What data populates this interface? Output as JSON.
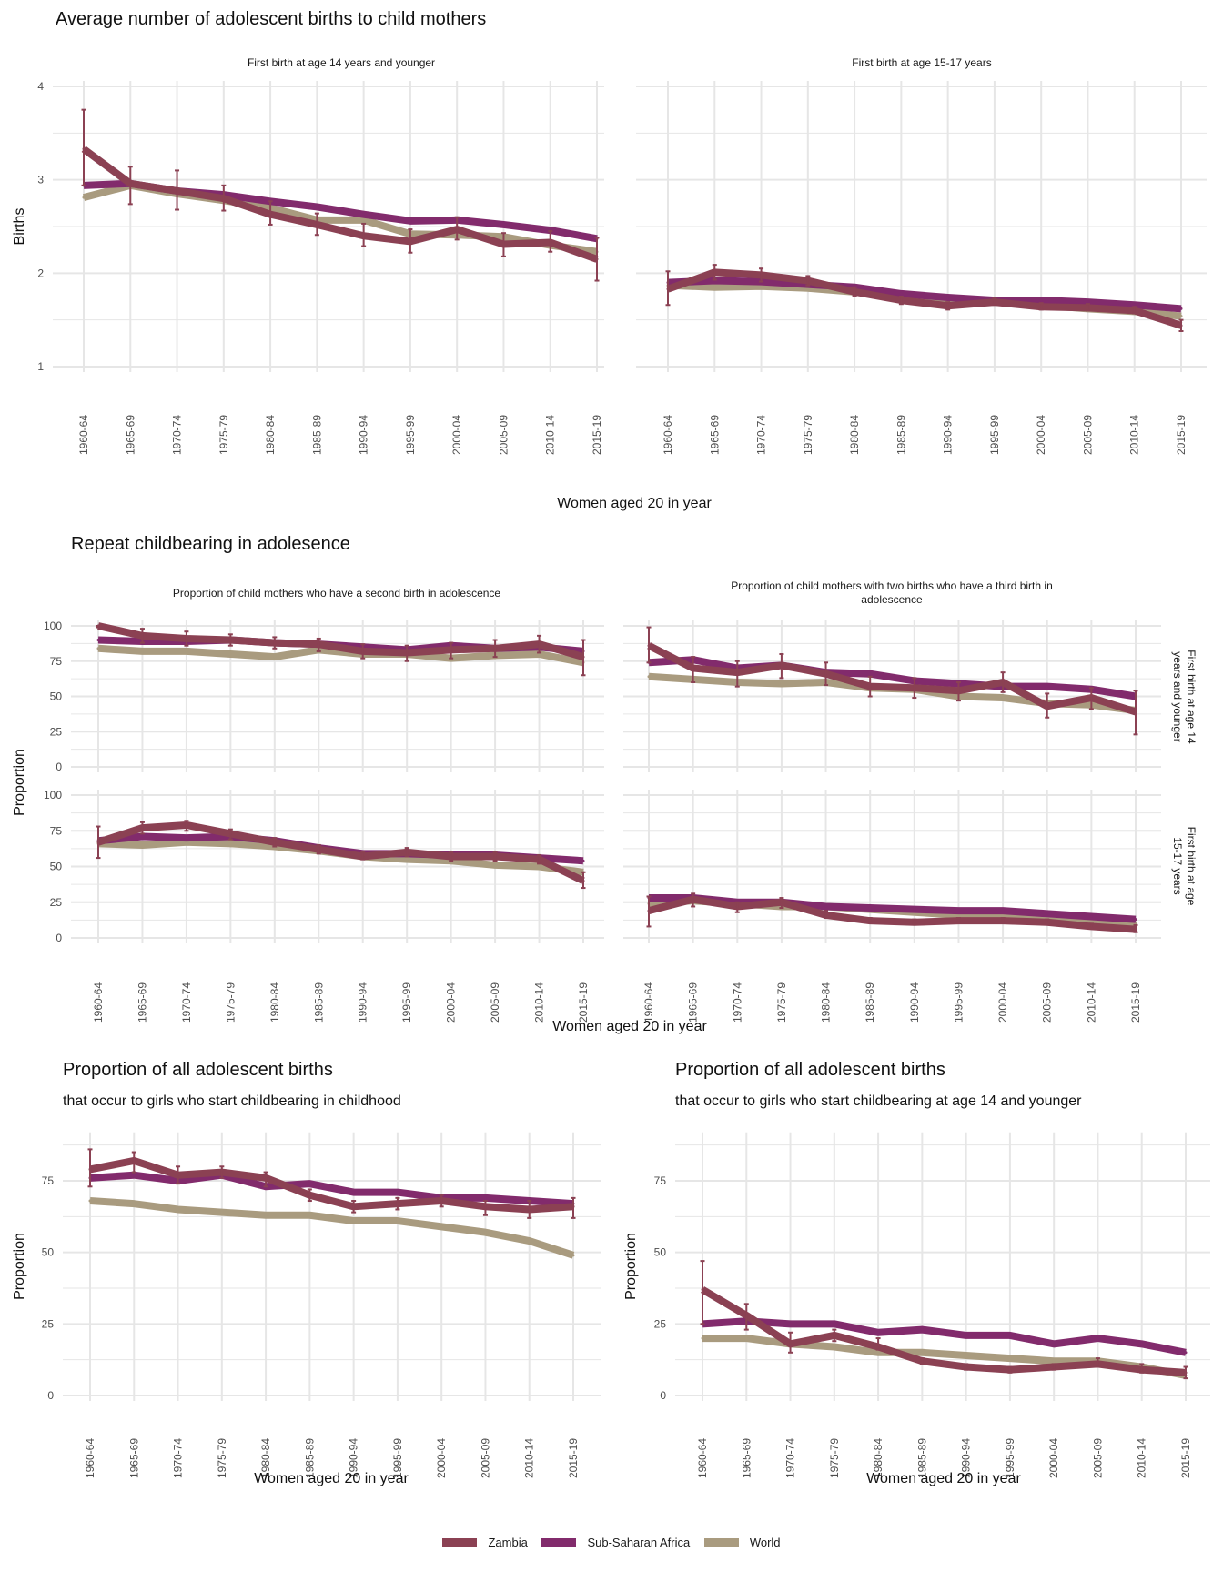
{
  "colors": {
    "Zambia": "#8b4153",
    "Sub-Saharan Africa": "#822b6c",
    "World": "#a99b7f",
    "grid": "#e6e6e6",
    "text": "#333333"
  },
  "section_a": {
    "title": "Average number of adolescent births to child mothers",
    "xlabel": "Women aged 20 in year"
  },
  "section_b": {
    "title": "Repeat childbearing in adolesence",
    "xlabel": "Women aged 20 in year"
  },
  "section_c_left": {
    "title": "Proportion of all adolescent births",
    "subtitle": "that occur to girls who start childbearing in childhood"
  },
  "section_c_right": {
    "title": "Proportion of all adolescent births",
    "subtitle": "that occur to girls who start childbearing at age 14 and younger"
  },
  "legend": [
    {
      "name": "Zambia"
    },
    {
      "name": "Sub-Saharan Africa"
    },
    {
      "name": "World"
    }
  ],
  "chart_data": [
    {
      "id": "a1",
      "type": "line",
      "facet_title": "First birth at age 14 years and younger",
      "ylabel": "Births",
      "xlabel": "Women aged 20 in year",
      "ylim": [
        1,
        4
      ],
      "yticks": [
        1,
        2,
        3,
        4
      ],
      "categories": [
        "1960-64",
        "1965-69",
        "1970-74",
        "1975-79",
        "1980-84",
        "1985-89",
        "1990-94",
        "1995-99",
        "2000-04",
        "2005-09",
        "2010-14",
        "2015-19"
      ],
      "series": [
        {
          "name": "World",
          "values": [
            2.81,
            2.94,
            2.85,
            2.78,
            2.7,
            2.57,
            2.57,
            2.42,
            2.41,
            2.39,
            2.3,
            2.23
          ]
        },
        {
          "name": "Sub-Saharan Africa",
          "values": [
            2.94,
            2.96,
            2.88,
            2.84,
            2.77,
            2.71,
            2.63,
            2.56,
            2.57,
            2.52,
            2.46,
            2.37
          ]
        },
        {
          "name": "Zambia",
          "values": [
            3.33,
            2.96,
            2.88,
            2.8,
            2.63,
            2.52,
            2.4,
            2.34,
            2.47,
            2.31,
            2.33,
            2.15
          ],
          "error_low": [
            2.94,
            2.74,
            2.68,
            2.67,
            2.52,
            2.41,
            2.29,
            2.22,
            2.36,
            2.18,
            2.23,
            1.92
          ],
          "error_high": [
            3.75,
            3.14,
            3.1,
            2.94,
            2.77,
            2.64,
            2.53,
            2.47,
            2.6,
            2.43,
            2.45,
            2.38
          ]
        }
      ]
    },
    {
      "id": "a2",
      "type": "line",
      "facet_title": "First birth at age 15-17 years",
      "ylim": [
        1,
        4
      ],
      "yticks": [
        1,
        2,
        3,
        4
      ],
      "categories": [
        "1960-64",
        "1965-69",
        "1970-74",
        "1975-79",
        "1980-84",
        "1985-89",
        "1990-94",
        "1995-99",
        "2000-04",
        "2005-09",
        "2010-14",
        "2015-19"
      ],
      "series": [
        {
          "name": "World",
          "values": [
            1.87,
            1.85,
            1.86,
            1.84,
            1.8,
            1.76,
            1.71,
            1.7,
            1.66,
            1.62,
            1.59,
            1.54
          ]
        },
        {
          "name": "Sub-Saharan Africa",
          "values": [
            1.9,
            1.92,
            1.91,
            1.88,
            1.85,
            1.78,
            1.74,
            1.71,
            1.71,
            1.69,
            1.66,
            1.62
          ]
        },
        {
          "name": "Zambia",
          "values": [
            1.83,
            2.01,
            1.98,
            1.92,
            1.8,
            1.71,
            1.65,
            1.69,
            1.64,
            1.63,
            1.6,
            1.44
          ],
          "error_low": [
            1.66,
            1.93,
            1.91,
            1.87,
            1.76,
            1.67,
            1.61,
            1.66,
            1.61,
            1.6,
            1.57,
            1.38
          ],
          "error_high": [
            2.02,
            2.09,
            2.05,
            1.97,
            1.85,
            1.75,
            1.69,
            1.73,
            1.68,
            1.67,
            1.64,
            1.5
          ]
        }
      ]
    },
    {
      "id": "b1",
      "type": "line",
      "facet_title": "Proportion of child mothers who have a second birth in adolescence",
      "row_label": "First birth at age 14 years and younger",
      "ylabel": "Proportion",
      "ylim": [
        0,
        100
      ],
      "yticks": [
        0,
        25,
        50,
        75,
        100
      ],
      "categories": [
        "1960-64",
        "1965-69",
        "1970-74",
        "1975-79",
        "1980-84",
        "1985-89",
        "1990-94",
        "1995-99",
        "2000-04",
        "2005-09",
        "2010-14",
        "2015-19"
      ],
      "series": [
        {
          "name": "World",
          "values": [
            84,
            82,
            82,
            80,
            78,
            83,
            80,
            80,
            77,
            79,
            80,
            74
          ]
        },
        {
          "name": "Sub-Saharan Africa",
          "values": [
            90,
            89,
            89,
            90,
            88,
            87,
            85,
            83,
            86,
            84,
            85,
            82
          ]
        },
        {
          "name": "Zambia",
          "values": [
            100,
            93,
            91,
            90,
            88,
            87,
            82,
            81,
            83,
            84,
            87,
            78
          ],
          "error_low": [
            99,
            88,
            86,
            86,
            84,
            82,
            77,
            75,
            77,
            78,
            81,
            65
          ],
          "error_high": [
            100,
            98,
            96,
            94,
            92,
            91,
            87,
            86,
            88,
            90,
            93,
            90
          ]
        }
      ]
    },
    {
      "id": "b2",
      "type": "line",
      "facet_title": "Proportion of child mothers with two births who have a third birth in adolescence",
      "row_label": "First birth at age 14 years and younger",
      "ylim": [
        0,
        100
      ],
      "yticks": [
        0,
        25,
        50,
        75,
        100
      ],
      "categories": [
        "1960-64",
        "1965-69",
        "1970-74",
        "1975-79",
        "1980-84",
        "1985-89",
        "1990-94",
        "1995-99",
        "2000-04",
        "2005-09",
        "2010-14",
        "2015-19"
      ],
      "series": [
        {
          "name": "World",
          "values": [
            64,
            62,
            60,
            59,
            60,
            56,
            55,
            50,
            49,
            45,
            44,
            40
          ]
        },
        {
          "name": "Sub-Saharan Africa",
          "values": [
            74,
            76,
            70,
            72,
            67,
            66,
            61,
            59,
            57,
            57,
            55,
            50
          ]
        },
        {
          "name": "Zambia",
          "values": [
            86,
            70,
            67,
            72,
            66,
            57,
            56,
            54,
            60,
            43,
            49,
            39
          ],
          "error_low": [
            74,
            60,
            57,
            63,
            58,
            50,
            49,
            47,
            53,
            35,
            41,
            23
          ],
          "error_high": [
            99,
            78,
            75,
            80,
            74,
            64,
            63,
            60,
            67,
            52,
            56,
            54
          ]
        }
      ]
    },
    {
      "id": "b3",
      "type": "line",
      "row_label": "First birth at age 15-17 years",
      "ylabel": "Proportion",
      "ylim": [
        0,
        100
      ],
      "yticks": [
        0,
        25,
        50,
        75,
        100
      ],
      "categories": [
        "1960-64",
        "1965-69",
        "1970-74",
        "1975-79",
        "1980-84",
        "1985-89",
        "1990-94",
        "1995-99",
        "2000-04",
        "2005-09",
        "2010-14",
        "2015-19"
      ],
      "series": [
        {
          "name": "World",
          "values": [
            66,
            65,
            67,
            66,
            64,
            61,
            57,
            55,
            54,
            51,
            50,
            46
          ]
        },
        {
          "name": "Sub-Saharan Africa",
          "values": [
            68,
            71,
            70,
            71,
            68,
            63,
            59,
            59,
            58,
            58,
            56,
            54
          ]
        },
        {
          "name": "Zambia",
          "values": [
            67,
            77,
            79,
            73,
            67,
            62,
            57,
            60,
            57,
            57,
            55,
            40
          ],
          "error_low": [
            56,
            73,
            75,
            69,
            64,
            59,
            55,
            57,
            54,
            54,
            52,
            35
          ],
          "error_high": [
            78,
            81,
            82,
            76,
            70,
            65,
            60,
            63,
            60,
            60,
            58,
            46
          ]
        }
      ]
    },
    {
      "id": "b4",
      "type": "line",
      "row_label": "First birth at age 15-17 years",
      "ylim": [
        0,
        100
      ],
      "yticks": [
        0,
        25,
        50,
        75,
        100
      ],
      "categories": [
        "1960-64",
        "1965-69",
        "1970-74",
        "1975-79",
        "1980-84",
        "1985-89",
        "1990-94",
        "1995-99",
        "2000-04",
        "2005-09",
        "2010-14",
        "2015-19"
      ],
      "series": [
        {
          "name": "World",
          "values": [
            24,
            26,
            24,
            22,
            22,
            20,
            18,
            16,
            15,
            13,
            12,
            10
          ]
        },
        {
          "name": "Sub-Saharan Africa",
          "values": [
            28,
            28,
            25,
            25,
            22,
            21,
            20,
            19,
            19,
            17,
            15,
            13
          ]
        },
        {
          "name": "Zambia",
          "values": [
            19,
            27,
            22,
            25,
            16,
            12,
            11,
            12,
            12,
            11,
            8,
            6
          ],
          "error_low": [
            8,
            22,
            18,
            21,
            14,
            11,
            10,
            11,
            11,
            10,
            7,
            4
          ],
          "error_high": [
            29,
            31,
            25,
            28,
            19,
            14,
            13,
            14,
            14,
            13,
            10,
            9
          ]
        }
      ]
    },
    {
      "id": "c1",
      "type": "line",
      "ylabel": "Proportion",
      "xlabel": "Women aged 20 in year",
      "ylim": [
        0,
        90
      ],
      "yticks": [
        0,
        25,
        50,
        75
      ],
      "categories": [
        "1960-64",
        "1965-69",
        "1970-74",
        "1975-79",
        "1980-84",
        "1985-89",
        "1990-94",
        "1995-99",
        "2000-04",
        "2005-09",
        "2010-14",
        "2015-19"
      ],
      "series": [
        {
          "name": "World",
          "values": [
            68,
            67,
            65,
            64,
            63,
            63,
            61,
            61,
            59,
            57,
            54,
            49
          ]
        },
        {
          "name": "Sub-Saharan Africa",
          "values": [
            76,
            77,
            75,
            77,
            73,
            74,
            71,
            71,
            69,
            69,
            68,
            67
          ]
        },
        {
          "name": "Zambia",
          "values": [
            79,
            82,
            77,
            78,
            76,
            70,
            66,
            67,
            68,
            66,
            65,
            66
          ],
          "error_low": [
            73,
            78,
            74,
            76,
            73,
            68,
            64,
            65,
            66,
            63,
            62,
            62
          ],
          "error_high": [
            86,
            85,
            80,
            80,
            78,
            72,
            68,
            69,
            70,
            68,
            68,
            69
          ]
        }
      ]
    },
    {
      "id": "c2",
      "type": "line",
      "ylabel": "Proportion",
      "xlabel": "Women aged 20 in year",
      "ylim": [
        0,
        90
      ],
      "yticks": [
        0,
        25,
        50,
        75
      ],
      "categories": [
        "1960-64",
        "1965-69",
        "1970-74",
        "1975-79",
        "1980-84",
        "1985-89",
        "1990-94",
        "1995-99",
        "2000-04",
        "2005-09",
        "2010-14",
        "2015-19"
      ],
      "series": [
        {
          "name": "World",
          "values": [
            20,
            20,
            18,
            17,
            15,
            15,
            14,
            13,
            12,
            12,
            10,
            7
          ]
        },
        {
          "name": "Sub-Saharan Africa",
          "values": [
            25,
            26,
            25,
            25,
            22,
            23,
            21,
            21,
            18,
            20,
            18,
            15
          ]
        },
        {
          "name": "Zambia",
          "values": [
            37,
            28,
            18,
            21,
            17,
            12,
            10,
            9,
            10,
            11,
            9,
            8
          ],
          "error_low": [
            25,
            23,
            15,
            19,
            16,
            11,
            9,
            8,
            9,
            10,
            8,
            6
          ],
          "error_high": [
            47,
            32,
            22,
            23,
            20,
            13,
            11,
            10,
            11,
            13,
            11,
            10
          ]
        }
      ]
    }
  ]
}
